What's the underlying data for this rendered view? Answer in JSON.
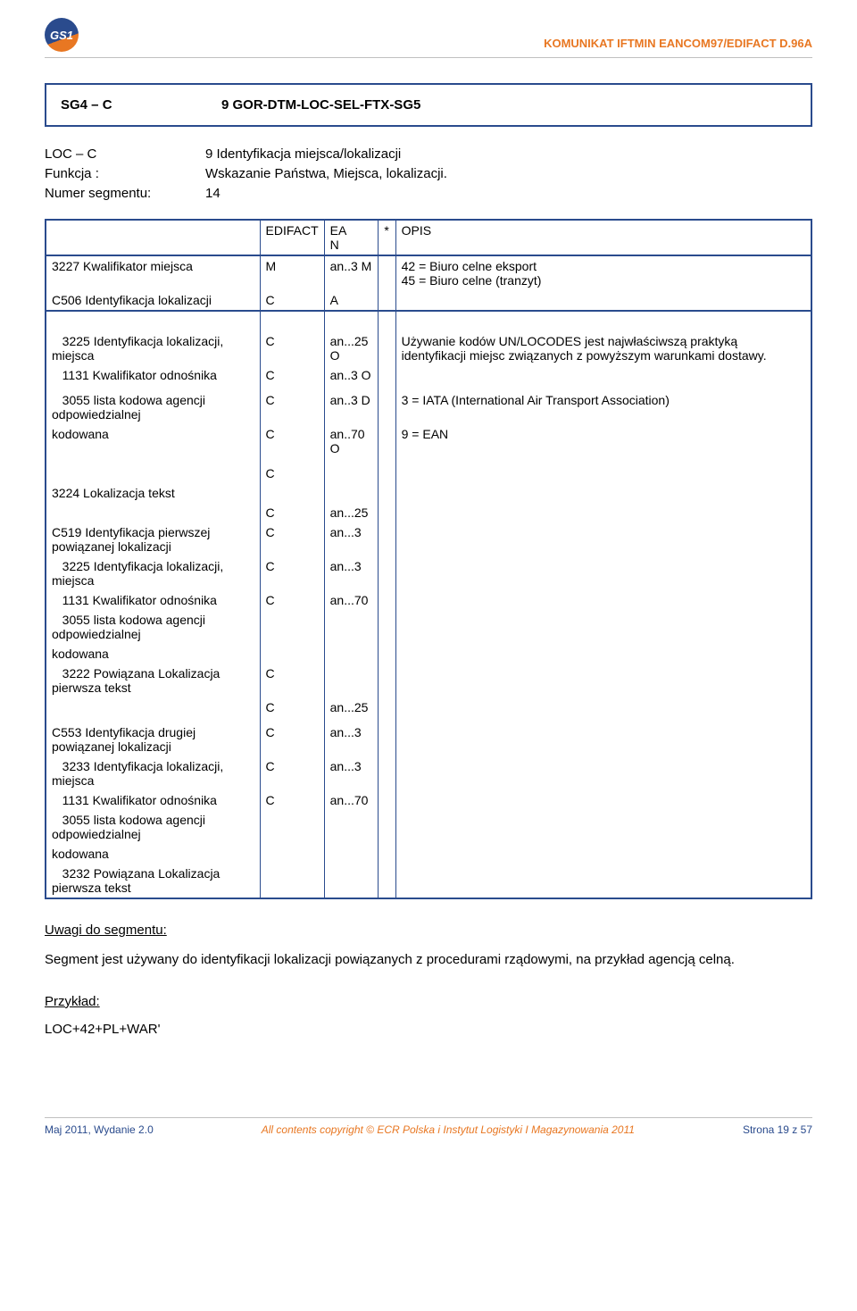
{
  "header": {
    "logo_text": "GS1",
    "title": "KOMUNIKAT IFTMIN EANCOM97/EDIFACT D.96A"
  },
  "segment": {
    "left": "SG4 – C",
    "right": "9 GOR-DTM-LOC-SEL-FTX-SG5"
  },
  "info": {
    "rows": [
      {
        "label": "LOC – C",
        "value": "9 Identyfikacja miejsca/lokalizacji"
      },
      {
        "label": "Funkcja :",
        "value": "Wskazanie Państwa, Miejsca, lokalizacji."
      },
      {
        "label": "Numer segmentu:",
        "value": "14"
      }
    ]
  },
  "table": {
    "hdr": {
      "edifact": "EDIFACT",
      "ean": "EA\nN",
      "star": "*",
      "opis": "OPIS"
    },
    "group1": [
      {
        "desc": "3227  Kwalifikator miejsca",
        "edi": "M",
        "ean": "an..3  M",
        "opis": "42 = Biuro celne eksport\n45 = Biuro celne (tranzyt)"
      },
      {
        "desc": "C506 Identyfikacja lokalizacji",
        "edi": "C",
        "ean": "A",
        "opis": ""
      }
    ],
    "group2": [
      {
        "desc": "   3225 Identyfikacja lokalizacji, miejsca",
        "edi": "C",
        "ean": "an...25   O",
        "opis": "Używanie kodów UN/LOCODES jest najwłaściwszą praktyką identyfikacji miejsc związanych z powyższym warunkami dostawy."
      },
      {
        "desc": "   1131 Kwalifikator odnośnika",
        "edi": "C",
        "ean": "an..3   O",
        "opis": ""
      },
      {
        "desc": "",
        "edi": "",
        "ean": "",
        "opis": ""
      },
      {
        "desc": "   3055 lista kodowa agencji odpowiedzialnej",
        "edi": "C",
        "ean": "an..3   D",
        "opis": " 3 = IATA (International Air Transport Association)"
      },
      {
        "desc": "kodowana",
        "edi": "C",
        "ean": "an..70   O",
        "opis": "9 = EAN"
      },
      {
        "desc": "",
        "edi": "",
        "ean": "",
        "opis": ""
      },
      {
        "desc": "",
        "edi": "C",
        "ean": "",
        "opis": ""
      },
      {
        "desc": "3224  Lokalizacja tekst",
        "edi": "",
        "ean": "",
        "opis": ""
      },
      {
        "desc": "",
        "edi": "C",
        "ean": "an...25",
        "opis": ""
      },
      {
        "desc": "C519  Identyfikacja pierwszej powiązanej lokalizacji",
        "edi": "C",
        "ean": "an...3",
        "opis": ""
      },
      {
        "desc": "   3225 Identyfikacja lokalizacji, miejsca",
        "edi": "C",
        "ean": "an...3",
        "opis": ""
      },
      {
        "desc": "   1131 Kwalifikator odnośnika",
        "edi": "C",
        "ean": "an...70",
        "opis": ""
      },
      {
        "desc": "   3055 lista kodowa agencji odpowiedzialnej",
        "edi": "",
        "ean": "",
        "opis": ""
      },
      {
        "desc": "kodowana",
        "edi": "",
        "ean": "",
        "opis": ""
      },
      {
        "desc": "   3222  Powiązana Lokalizacja pierwsza tekst",
        "edi": "C",
        "ean": "",
        "opis": ""
      },
      {
        "desc": "",
        "edi": "C",
        "ean": "an...25",
        "opis": ""
      },
      {
        "desc": "",
        "edi": "",
        "ean": "",
        "opis": ""
      },
      {
        "desc": "C553  Identyfikacja drugiej powiązanej lokalizacji",
        "edi": "C",
        "ean": "an...3",
        "opis": ""
      },
      {
        "desc": "   3233 Identyfikacja lokalizacji, miejsca",
        "edi": "C",
        "ean": "an...3",
        "opis": ""
      },
      {
        "desc": "   1131 Kwalifikator odnośnika",
        "edi": "C",
        "ean": "an...70",
        "opis": ""
      },
      {
        "desc": "   3055 lista kodowa agencji odpowiedzialnej",
        "edi": "",
        "ean": "",
        "opis": ""
      },
      {
        "desc": "kodowana",
        "edi": "",
        "ean": "",
        "opis": ""
      },
      {
        "desc": "   3232  Powiązana Lokalizacja pierwsza tekst",
        "edi": "",
        "ean": "",
        "opis": ""
      }
    ]
  },
  "notes": {
    "title": "Uwagi do segmentu:",
    "body": "Segment jest używany do identyfikacji lokalizacji powiązanych z procedurami rządowymi, na przykład agencją celną.",
    "example_title": "Przykład:",
    "example_code": "LOC+42+PL+WAR'"
  },
  "footer": {
    "left": "Maj 2011, Wydanie 2.0",
    "mid": "All contents copyright © ECR Polska i Instytut Logistyki I Magazynowania 2011",
    "right": "Strona 19 z 57"
  }
}
